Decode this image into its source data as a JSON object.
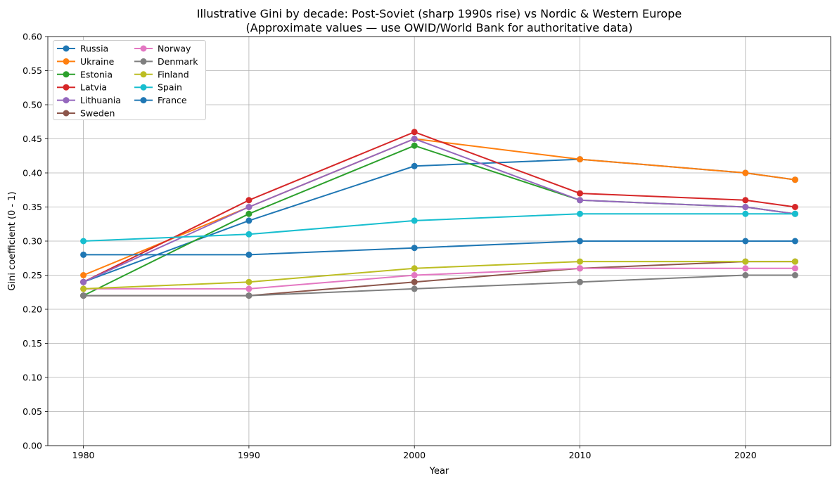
{
  "chart_data": {
    "type": "line",
    "title": "Illustrative Gini by decade: Post-Soviet (sharp 1990s rise) vs Nordic & Western Europe",
    "subtitle": "(Approximate values — use OWID/World Bank for authoritative data)",
    "xlabel": "Year",
    "ylabel": "Gini coefficient (0 - 1)",
    "x": [
      1980,
      1990,
      2000,
      2010,
      2020,
      2023
    ],
    "xticks": [
      1980,
      1990,
      2000,
      2010,
      2020
    ],
    "xlim": [
      1977.85,
      2025.15
    ],
    "ylim": [
      0.0,
      0.6
    ],
    "ytick_step": 0.05,
    "grid": true,
    "legend_position": "upper-left",
    "legend_columns": 2,
    "legend_rows_per_column": 6,
    "series": [
      {
        "name": "Russia",
        "color": "#1f77b4",
        "values": [
          0.24,
          0.33,
          0.41,
          0.42,
          0.4,
          0.39
        ]
      },
      {
        "name": "Ukraine",
        "color": "#ff7f0e",
        "values": [
          0.25,
          0.35,
          0.45,
          0.42,
          0.4,
          0.39
        ]
      },
      {
        "name": "Estonia",
        "color": "#2ca02c",
        "values": [
          0.22,
          0.34,
          0.44,
          0.36,
          0.35,
          0.34
        ]
      },
      {
        "name": "Latvia",
        "color": "#d62728",
        "values": [
          0.24,
          0.36,
          0.46,
          0.37,
          0.36,
          0.35
        ]
      },
      {
        "name": "Lithuania",
        "color": "#9467bd",
        "values": [
          0.24,
          0.35,
          0.45,
          0.36,
          0.35,
          0.34
        ]
      },
      {
        "name": "Sweden",
        "color": "#8c564b",
        "values": [
          0.22,
          0.22,
          0.24,
          0.26,
          0.27,
          0.27
        ]
      },
      {
        "name": "Norway",
        "color": "#e377c2",
        "values": [
          0.23,
          0.23,
          0.25,
          0.26,
          0.26,
          0.26
        ]
      },
      {
        "name": "Denmark",
        "color": "#7f7f7f",
        "values": [
          0.22,
          0.22,
          0.23,
          0.24,
          0.25,
          0.25
        ]
      },
      {
        "name": "Finland",
        "color": "#bcbd22",
        "values": [
          0.23,
          0.24,
          0.26,
          0.27,
          0.27,
          0.27
        ]
      },
      {
        "name": "Spain",
        "color": "#17becf",
        "values": [
          0.3,
          0.31,
          0.33,
          0.34,
          0.34,
          0.34
        ]
      },
      {
        "name": "France",
        "color": "#1f77b4",
        "values": [
          0.28,
          0.28,
          0.29,
          0.3,
          0.3,
          0.3
        ]
      }
    ],
    "style": {
      "grid_color": "#b0b0b0",
      "spine_color": "#000000",
      "legend_border_color": "#cccccc",
      "legend_background": "#ffffff"
    }
  }
}
